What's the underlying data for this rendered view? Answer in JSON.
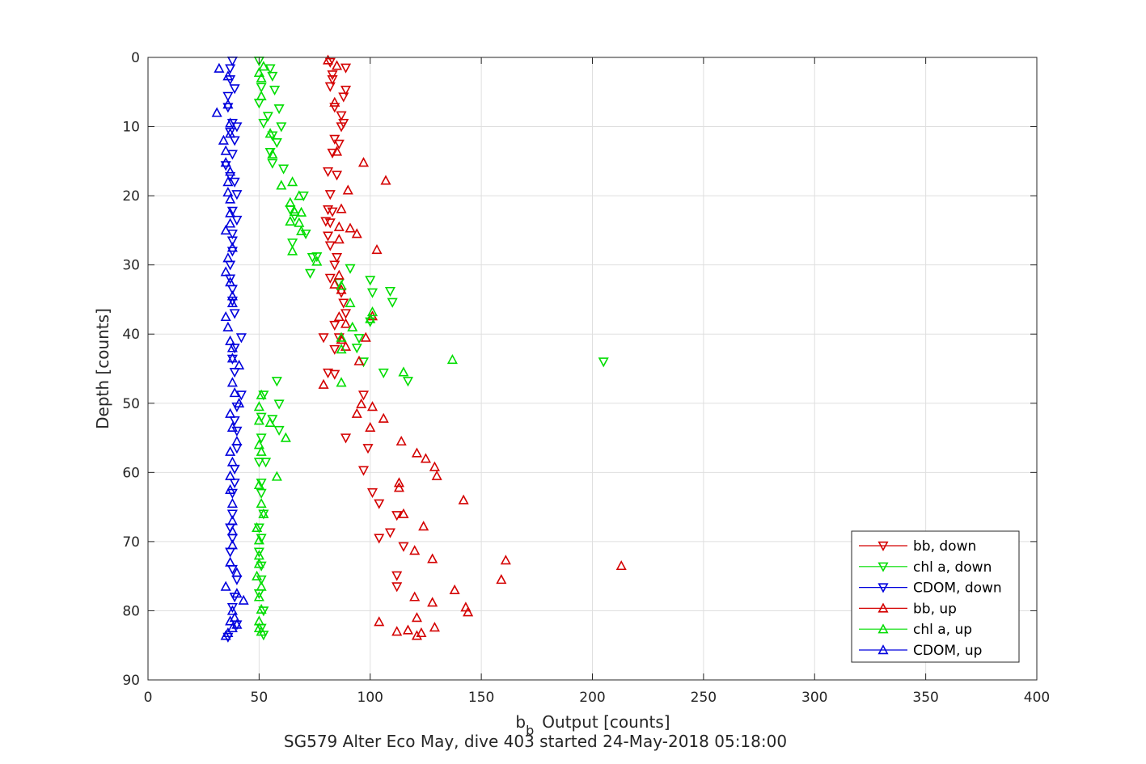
{
  "chart_data": {
    "type": "scatter",
    "xlabel_main": "b",
    "xlabel_sub": "b",
    "xlabel_rest": "Output [counts]",
    "ylabel": "Depth [counts]",
    "subtitle": "SG579 Alter Eco May, dive 403 started 24-May-2018 05:18:00",
    "xlim": [
      0,
      400
    ],
    "ylim": [
      0,
      90
    ],
    "y_reversed": true,
    "grid": true,
    "legend_position": "bottom-right",
    "xticks": [
      0,
      50,
      100,
      150,
      200,
      250,
      300,
      350,
      400
    ],
    "yticks": [
      0,
      10,
      20,
      30,
      40,
      50,
      60,
      70,
      80,
      90
    ],
    "series": [
      {
        "name": "bb, down",
        "marker": "triangle-down",
        "color": "#d40000",
        "points": [
          [
            82,
            0.7
          ],
          [
            89,
            1.5
          ],
          [
            83,
            2.5
          ],
          [
            83,
            3.2
          ],
          [
            82,
            4.2
          ],
          [
            89,
            4.7
          ],
          [
            88,
            5.7
          ],
          [
            84,
            7.2
          ],
          [
            87,
            8.4
          ],
          [
            88,
            9.5
          ],
          [
            87,
            10.0
          ],
          [
            84,
            11.8
          ],
          [
            86,
            12.5
          ],
          [
            83,
            13.8
          ],
          [
            81,
            16.5
          ],
          [
            85,
            17.0
          ],
          [
            82,
            19.8
          ],
          [
            81,
            22.0
          ],
          [
            83,
            22.3
          ],
          [
            80,
            23.7
          ],
          [
            82,
            23.9
          ],
          [
            81,
            25.8
          ],
          [
            82,
            27.2
          ],
          [
            85,
            28.9
          ],
          [
            84,
            30.0
          ],
          [
            82,
            31.9
          ],
          [
            87,
            34.0
          ],
          [
            88,
            35.5
          ],
          [
            89,
            37.0
          ],
          [
            84,
            38.7
          ],
          [
            79,
            40.5
          ],
          [
            86,
            40.5
          ],
          [
            84,
            42.2
          ],
          [
            81,
            45.6
          ],
          [
            84,
            45.8
          ],
          [
            97,
            48.8
          ],
          [
            89,
            55.0
          ],
          [
            99,
            56.5
          ],
          [
            97,
            59.7
          ],
          [
            101,
            62.9
          ],
          [
            104,
            64.5
          ],
          [
            104,
            69.5
          ],
          [
            112,
            66.2
          ],
          [
            115,
            70.7
          ],
          [
            112,
            74.9
          ],
          [
            112,
            76.5
          ],
          [
            109,
            68.7
          ]
        ]
      },
      {
        "name": "chl a, down",
        "marker": "triangle-down",
        "color": "#00dd00",
        "points": [
          [
            50,
            0.5
          ],
          [
            55,
            1.6
          ],
          [
            56,
            2.7
          ],
          [
            51,
            4.3
          ],
          [
            57,
            4.7
          ],
          [
            50,
            6.6
          ],
          [
            59,
            7.4
          ],
          [
            54,
            8.5
          ],
          [
            52,
            9.5
          ],
          [
            60,
            10.0
          ],
          [
            56,
            11.3
          ],
          [
            58,
            12.3
          ],
          [
            55,
            13.7
          ],
          [
            56,
            15.3
          ],
          [
            61,
            16.1
          ],
          [
            70,
            20.0
          ],
          [
            64,
            22.0
          ],
          [
            66,
            23.0
          ],
          [
            71,
            25.5
          ],
          [
            65,
            26.8
          ],
          [
            76,
            28.8
          ],
          [
            74,
            28.9
          ],
          [
            91,
            30.5
          ],
          [
            73,
            31.2
          ],
          [
            86,
            32.6
          ],
          [
            100,
            32.2
          ],
          [
            109,
            33.8
          ],
          [
            101,
            34.0
          ],
          [
            110,
            35.4
          ],
          [
            100,
            38.2
          ],
          [
            95,
            40.6
          ],
          [
            94,
            42.0
          ],
          [
            97,
            44.0
          ],
          [
            205,
            44.0
          ],
          [
            106,
            45.6
          ],
          [
            117,
            46.8
          ],
          [
            58,
            46.8
          ],
          [
            52,
            48.8
          ],
          [
            59,
            50.1
          ],
          [
            56,
            52.3
          ],
          [
            51,
            52.0
          ],
          [
            59,
            53.9
          ],
          [
            51,
            55.0
          ],
          [
            50,
            58.5
          ],
          [
            53,
            58.5
          ],
          [
            51,
            61.5
          ],
          [
            51,
            63.0
          ],
          [
            52,
            66.0
          ],
          [
            50,
            68.0
          ],
          [
            51,
            69.5
          ],
          [
            50,
            71.5
          ],
          [
            51,
            73.5
          ],
          [
            51,
            75.5
          ],
          [
            50,
            77.5
          ],
          [
            52,
            80.0
          ],
          [
            51,
            82.5
          ],
          [
            52,
            83.5
          ]
        ]
      },
      {
        "name": "CDOM, down",
        "marker": "triangle-down",
        "color": "#0000dd",
        "points": [
          [
            38,
            0.5
          ],
          [
            37,
            1.6
          ],
          [
            37,
            3.2
          ],
          [
            39,
            4.5
          ],
          [
            36,
            5.6
          ],
          [
            36,
            7.2
          ],
          [
            38,
            9.5
          ],
          [
            40,
            10.0
          ],
          [
            37,
            10.8
          ],
          [
            39,
            12.0
          ],
          [
            38,
            14.0
          ],
          [
            35,
            15.6
          ],
          [
            37,
            17.2
          ],
          [
            39,
            18.0
          ],
          [
            40,
            19.8
          ],
          [
            38,
            22.2
          ],
          [
            40,
            23.5
          ],
          [
            38,
            25.5
          ],
          [
            38,
            26.5
          ],
          [
            38,
            28.0
          ],
          [
            37,
            30.0
          ],
          [
            37,
            32.0
          ],
          [
            38,
            33.5
          ],
          [
            38,
            35.2
          ],
          [
            39,
            37.0
          ],
          [
            42,
            40.5
          ],
          [
            39,
            42.0
          ],
          [
            38,
            43.6
          ],
          [
            39,
            45.5
          ],
          [
            42,
            48.8
          ],
          [
            40,
            50.5
          ],
          [
            39,
            52.5
          ],
          [
            40,
            54.0
          ],
          [
            40,
            56.5
          ],
          [
            39,
            59.5
          ],
          [
            39,
            61.5
          ],
          [
            38,
            63.0
          ],
          [
            38,
            66.0
          ],
          [
            37,
            68.0
          ],
          [
            38,
            69.5
          ],
          [
            37,
            71.5
          ],
          [
            38,
            74.0
          ],
          [
            40,
            75.5
          ],
          [
            39,
            78.0
          ],
          [
            38,
            79.5
          ],
          [
            40,
            82.0
          ],
          [
            36,
            83.8
          ]
        ]
      },
      {
        "name": "bb, up",
        "marker": "triangle-up",
        "color": "#d40000",
        "points": [
          [
            81,
            0.4
          ],
          [
            85,
            1.2
          ],
          [
            84,
            6.5
          ],
          [
            85,
            13.6
          ],
          [
            97,
            15.2
          ],
          [
            90,
            19.2
          ],
          [
            107,
            17.8
          ],
          [
            87,
            21.9
          ],
          [
            86,
            24.5
          ],
          [
            91,
            24.7
          ],
          [
            94,
            25.5
          ],
          [
            86,
            26.3
          ],
          [
            103,
            27.8
          ],
          [
            86,
            31.5
          ],
          [
            84,
            32.8
          ],
          [
            87,
            33.6
          ],
          [
            86,
            37.5
          ],
          [
            89,
            38.5
          ],
          [
            101,
            37.4
          ],
          [
            87,
            40.8
          ],
          [
            98,
            40.5
          ],
          [
            89,
            41.8
          ],
          [
            95,
            43.9
          ],
          [
            79,
            47.3
          ],
          [
            96,
            50.1
          ],
          [
            94,
            51.5
          ],
          [
            101,
            50.5
          ],
          [
            106,
            52.2
          ],
          [
            100,
            53.5
          ],
          [
            114,
            55.5
          ],
          [
            121,
            57.2
          ],
          [
            125,
            58.0
          ],
          [
            129,
            59.2
          ],
          [
            130,
            60.5
          ],
          [
            113,
            61.5
          ],
          [
            113,
            62.2
          ],
          [
            142,
            64.0
          ],
          [
            115,
            66.0
          ],
          [
            124,
            67.8
          ],
          [
            120,
            71.3
          ],
          [
            128,
            72.5
          ],
          [
            161,
            72.7
          ],
          [
            213,
            73.5
          ],
          [
            159,
            75.5
          ],
          [
            138,
            77.0
          ],
          [
            120,
            78.0
          ],
          [
            128,
            78.8
          ],
          [
            143,
            79.5
          ],
          [
            144,
            80.2
          ],
          [
            121,
            81.0
          ],
          [
            104,
            81.6
          ],
          [
            129,
            82.4
          ],
          [
            117,
            82.8
          ],
          [
            112,
            83.0
          ],
          [
            123,
            83.2
          ],
          [
            121,
            83.6
          ]
        ]
      },
      {
        "name": "chl a, up",
        "marker": "triangle-up",
        "color": "#00dd00",
        "points": [
          [
            52,
            1.3
          ],
          [
            50,
            2.2
          ],
          [
            51,
            3.0
          ],
          [
            51,
            5.6
          ],
          [
            55,
            11.0
          ],
          [
            56,
            14.0
          ],
          [
            65,
            18.0
          ],
          [
            60,
            18.5
          ],
          [
            68,
            20.0
          ],
          [
            64,
            21.0
          ],
          [
            66,
            22.3
          ],
          [
            69,
            22.4
          ],
          [
            64,
            23.7
          ],
          [
            68,
            23.9
          ],
          [
            69,
            25.1
          ],
          [
            65,
            28.0
          ],
          [
            76,
            29.5
          ],
          [
            87,
            33.0
          ],
          [
            91,
            35.5
          ],
          [
            101,
            36.8
          ],
          [
            100,
            37.8
          ],
          [
            92,
            39.0
          ],
          [
            87,
            40.5
          ],
          [
            87,
            42.2
          ],
          [
            137,
            43.7
          ],
          [
            115,
            45.5
          ],
          [
            87,
            47.0
          ],
          [
            51,
            48.8
          ],
          [
            50,
            50.5
          ],
          [
            50,
            52.5
          ],
          [
            55,
            52.8
          ],
          [
            62,
            55.0
          ],
          [
            50,
            56.0
          ],
          [
            51,
            57.0
          ],
          [
            58,
            60.6
          ],
          [
            50,
            61.8
          ],
          [
            51,
            64.5
          ],
          [
            52,
            66.0
          ],
          [
            49,
            68.0
          ],
          [
            50,
            69.8
          ],
          [
            50,
            72.0
          ],
          [
            50,
            73.2
          ],
          [
            49,
            75.0
          ],
          [
            51,
            76.5
          ],
          [
            50,
            78.0
          ],
          [
            51,
            79.8
          ],
          [
            50,
            81.5
          ],
          [
            50,
            82.5
          ],
          [
            51,
            83.0
          ]
        ]
      },
      {
        "name": "CDOM, up",
        "marker": "triangle-up",
        "color": "#0000dd",
        "points": [
          [
            32,
            1.6
          ],
          [
            36,
            2.7
          ],
          [
            36,
            6.8
          ],
          [
            31,
            8.0
          ],
          [
            37,
            9.5
          ],
          [
            37,
            11.0
          ],
          [
            34,
            12.0
          ],
          [
            35,
            13.5
          ],
          [
            35,
            15.2
          ],
          [
            37,
            16.5
          ],
          [
            36,
            18.0
          ],
          [
            36,
            19.5
          ],
          [
            37,
            20.5
          ],
          [
            37,
            22.5
          ],
          [
            37,
            24.0
          ],
          [
            35,
            25.0
          ],
          [
            38,
            27.5
          ],
          [
            36,
            29.0
          ],
          [
            35,
            31.0
          ],
          [
            37,
            32.5
          ],
          [
            38,
            34.5
          ],
          [
            38,
            35.5
          ],
          [
            35,
            37.5
          ],
          [
            36,
            39.0
          ],
          [
            37,
            41.0
          ],
          [
            38,
            42.0
          ],
          [
            38,
            43.5
          ],
          [
            41,
            44.5
          ],
          [
            38,
            47.0
          ],
          [
            39,
            48.5
          ],
          [
            41,
            50.0
          ],
          [
            37,
            51.5
          ],
          [
            38,
            53.5
          ],
          [
            40,
            55.5
          ],
          [
            37,
            57.0
          ],
          [
            38,
            58.5
          ],
          [
            37,
            60.5
          ],
          [
            37,
            62.5
          ],
          [
            38,
            64.5
          ],
          [
            38,
            67.0
          ],
          [
            38,
            68.5
          ],
          [
            38,
            70.5
          ],
          [
            37,
            73.0
          ],
          [
            40,
            74.5
          ],
          [
            35,
            76.5
          ],
          [
            40,
            77.5
          ],
          [
            43,
            78.5
          ],
          [
            38,
            80.0
          ],
          [
            39,
            81.0
          ],
          [
            40,
            82.0
          ],
          [
            37,
            81.5
          ],
          [
            38,
            82.5
          ],
          [
            36,
            83.2
          ],
          [
            35,
            83.6
          ]
        ]
      }
    ]
  }
}
